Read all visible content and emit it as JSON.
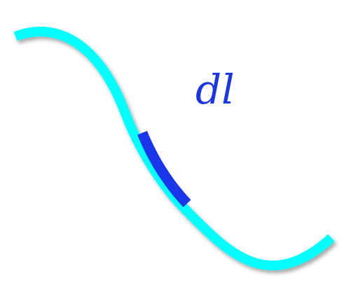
{
  "diagram": {
    "element_label": "dl",
    "colors": {
      "curve": "#00FFFF",
      "segment": "#1A36E8",
      "label": "#1A36E8",
      "background": "#FFFFFF"
    }
  }
}
